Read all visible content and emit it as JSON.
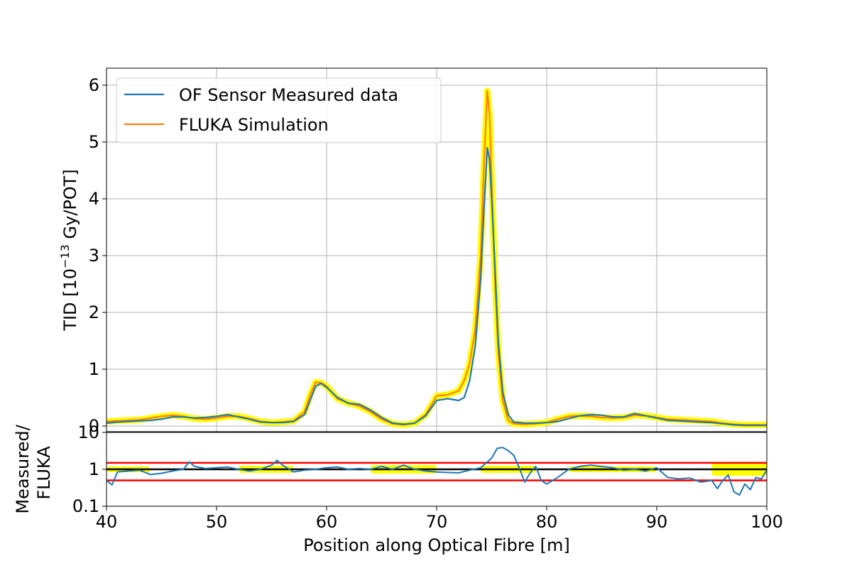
{
  "chart_data": [
    {
      "type": "line",
      "panel": "main",
      "xlabel": "Position along Optical Fibre [m]",
      "ylabel_prefix": "TID [10",
      "ylabel_sup": "−13",
      "ylabel_suffix": " Gy/POT]",
      "xlim": [
        40,
        100
      ],
      "ylim": [
        -0.1,
        6.3
      ],
      "grid": true,
      "legend_position": "top-left",
      "x_ticks": [
        "40",
        "50",
        "60",
        "70",
        "80",
        "90",
        "100"
      ],
      "y_ticks": [
        "0",
        "1",
        "2",
        "3",
        "4",
        "5",
        "6"
      ],
      "colors": {
        "measured": "#1f77b4",
        "simulation": "#ff7f0e",
        "band": "#ffff00"
      },
      "series": [
        {
          "name": "OF Sensor Measured data",
          "x": [
            40,
            41,
            42,
            43,
            44,
            45,
            46,
            47,
            48,
            49,
            50,
            51,
            52,
            53,
            54,
            55,
            56,
            57,
            58,
            58.5,
            59,
            59.5,
            60,
            61,
            62,
            63,
            64,
            65,
            66,
            67,
            68,
            69,
            70,
            71,
            72,
            72.5,
            73,
            73.5,
            74,
            74.3,
            74.6,
            74.8,
            75,
            75.3,
            75.6,
            76,
            76.5,
            77,
            78,
            79,
            80,
            81,
            82,
            83,
            84,
            85,
            86,
            87,
            88,
            89,
            90,
            91,
            92,
            93,
            94,
            95,
            96,
            97,
            98,
            99,
            100
          ],
          "values": [
            0.05,
            0.07,
            0.08,
            0.09,
            0.1,
            0.12,
            0.16,
            0.16,
            0.14,
            0.15,
            0.17,
            0.2,
            0.16,
            0.12,
            0.07,
            0.06,
            0.06,
            0.08,
            0.2,
            0.45,
            0.7,
            0.75,
            0.68,
            0.5,
            0.4,
            0.38,
            0.28,
            0.15,
            0.05,
            0.03,
            0.05,
            0.18,
            0.45,
            0.48,
            0.45,
            0.5,
            0.8,
            1.4,
            2.6,
            3.8,
            4.9,
            4.7,
            4.0,
            2.8,
            1.5,
            0.6,
            0.2,
            0.07,
            0.05,
            0.05,
            0.06,
            0.08,
            0.13,
            0.18,
            0.2,
            0.19,
            0.16,
            0.16,
            0.22,
            0.18,
            0.14,
            0.1,
            0.09,
            0.08,
            0.07,
            0.06,
            0.04,
            0.02,
            0.01,
            0.01,
            0.01
          ]
        },
        {
          "name": "FLUKA Simulation",
          "x": [
            40,
            41,
            42,
            43,
            44,
            45,
            46,
            47,
            48,
            49,
            50,
            51,
            52,
            53,
            54,
            55,
            56,
            57,
            58,
            58.5,
            59,
            59.5,
            60,
            61,
            62,
            63,
            64,
            65,
            66,
            67,
            68,
            69,
            70,
            71,
            72,
            72.5,
            73,
            73.5,
            74,
            74.3,
            74.6,
            74.8,
            75,
            75.3,
            75.6,
            76,
            76.5,
            77,
            78,
            79,
            80,
            81,
            82,
            83,
            84,
            85,
            86,
            87,
            88,
            89,
            90,
            91,
            92,
            93,
            94,
            95,
            96,
            97,
            98,
            99,
            100
          ],
          "values": [
            0.08,
            0.09,
            0.1,
            0.11,
            0.14,
            0.17,
            0.19,
            0.17,
            0.13,
            0.12,
            0.14,
            0.17,
            0.17,
            0.13,
            0.08,
            0.06,
            0.07,
            0.09,
            0.25,
            0.55,
            0.77,
            0.76,
            0.7,
            0.48,
            0.4,
            0.35,
            0.25,
            0.12,
            0.04,
            0.02,
            0.05,
            0.2,
            0.53,
            0.55,
            0.62,
            0.8,
            1.1,
            1.7,
            3.0,
            4.6,
            5.9,
            5.5,
            4.3,
            2.6,
            1.3,
            0.45,
            0.1,
            0.04,
            0.03,
            0.04,
            0.06,
            0.12,
            0.17,
            0.18,
            0.17,
            0.15,
            0.14,
            0.15,
            0.19,
            0.18,
            0.15,
            0.12,
            0.11,
            0.1,
            0.09,
            0.08,
            0.05,
            0.03,
            0.02,
            0.02,
            0.02
          ]
        }
      ]
    },
    {
      "type": "line",
      "panel": "ratio",
      "ylabel_line1": "Measured/",
      "ylabel_line2": "FLUKA",
      "xlim": [
        40,
        100
      ],
      "ylim": [
        0.1,
        10
      ],
      "log_y": true,
      "y_ticks": [
        "10",
        "1",
        "0.1"
      ],
      "reference_lines": [
        1.5,
        0.5
      ],
      "colors": {
        "ratio": "#1f77b4",
        "reference": "#ff0000",
        "unity": "#000000",
        "band": "#ffff00"
      },
      "series": [
        {
          "name": "",
          "x": [
            40,
            40.5,
            41,
            42,
            43,
            44,
            45,
            46,
            47,
            47.5,
            48,
            49,
            50,
            51,
            52,
            53,
            54,
            55,
            55.5,
            56,
            57,
            58,
            59,
            60,
            61,
            62,
            63,
            64,
            65,
            66,
            67,
            68,
            69,
            70,
            71,
            72,
            73,
            74,
            75,
            75.5,
            76,
            76.5,
            77,
            77.5,
            78,
            78.5,
            79,
            79.5,
            80,
            81,
            82,
            83,
            84,
            85,
            86,
            87,
            88,
            89,
            90,
            91,
            92,
            93,
            94,
            95,
            95.5,
            96,
            96.5,
            97,
            97.5,
            98,
            98.5,
            99,
            99.5,
            100
          ],
          "values": [
            0.5,
            0.38,
            0.85,
            0.9,
            0.95,
            0.72,
            0.78,
            0.9,
            1.0,
            1.6,
            1.2,
            1.05,
            1.1,
            1.15,
            1.0,
            0.9,
            1.0,
            1.3,
            1.75,
            1.3,
            0.85,
            0.95,
            1.0,
            1.1,
            1.15,
            1.0,
            1.05,
            1.0,
            1.2,
            1.0,
            1.3,
            1.0,
            0.9,
            0.85,
            0.82,
            0.8,
            0.95,
            1.1,
            2.0,
            3.7,
            3.9,
            3.2,
            2.4,
            1.1,
            0.45,
            0.8,
            1.2,
            0.5,
            0.4,
            0.6,
            1.0,
            1.2,
            1.3,
            1.2,
            1.1,
            0.95,
            1.0,
            0.9,
            1.1,
            0.6,
            0.55,
            0.58,
            0.45,
            0.5,
            0.3,
            0.5,
            0.7,
            0.25,
            0.2,
            0.4,
            0.28,
            0.6,
            0.55,
            0.95
          ]
        }
      ]
    }
  ]
}
